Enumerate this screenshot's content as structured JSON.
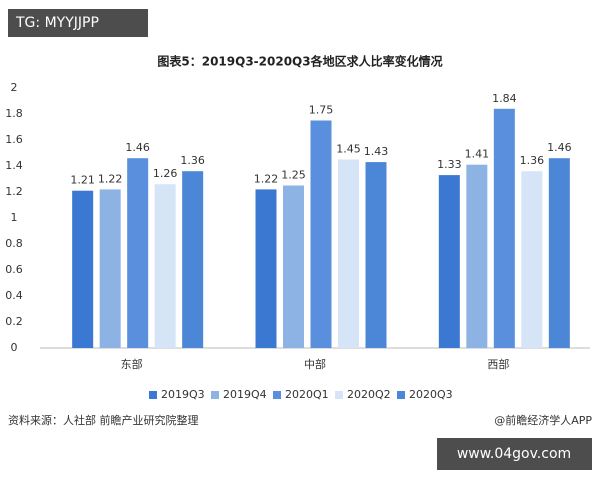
{
  "badge": "TG: MYYJJPP",
  "chart_data": {
    "type": "bar",
    "title": "图表5：2019Q3-2020Q3各地区求人比率变化情况",
    "categories": [
      "东部",
      "中部",
      "西部"
    ],
    "series": [
      {
        "name": "2019Q3",
        "color": "#3b78d1",
        "values": [
          1.21,
          1.22,
          1.33
        ]
      },
      {
        "name": "2019Q4",
        "color": "#8db3e4",
        "values": [
          1.22,
          1.25,
          1.41
        ]
      },
      {
        "name": "2020Q1",
        "color": "#5a8fdd",
        "values": [
          1.46,
          1.75,
          1.84
        ]
      },
      {
        "name": "2020Q2",
        "color": "#d5e5f7",
        "values": [
          1.26,
          1.45,
          1.36
        ]
      },
      {
        "name": "2020Q3",
        "color": "#4c86d6",
        "values": [
          1.36,
          1.43,
          1.46
        ]
      }
    ],
    "ylim": [
      0,
      2
    ],
    "yticks": [
      0,
      0.2,
      0.4,
      0.6,
      0.8,
      1,
      1.2,
      1.4,
      1.6,
      1.8,
      2
    ],
    "legend": "bottom"
  },
  "source": "资料来源：人社部 前瞻产业研究院整理",
  "credit": "@前瞻经济学人APP",
  "site": "www.04gov.com"
}
